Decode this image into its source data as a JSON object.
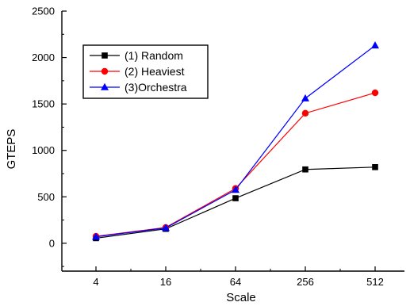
{
  "chart_data": {
    "type": "line",
    "title": "",
    "xlabel": "Scale",
    "ylabel": "GTEPS",
    "categories": [
      "4",
      "16",
      "64",
      "256",
      "512"
    ],
    "ylim": [
      -300,
      2500
    ],
    "yticks": [
      0,
      500,
      1000,
      1500,
      2000,
      2500
    ],
    "grid": false,
    "legend_position": "upper-left",
    "series": [
      {
        "name": "(1) Random",
        "color": "#000000",
        "marker": "square",
        "values": [
          55,
          155,
          485,
          795,
          820
        ]
      },
      {
        "name": "(2) Heaviest",
        "color": "#ff0000",
        "marker": "circle",
        "values": [
          75,
          170,
          590,
          1400,
          1620
        ]
      },
      {
        "name": "(3)Orchestra",
        "color": "#0000ff",
        "marker": "triangle",
        "values": [
          70,
          165,
          575,
          1560,
          2130
        ]
      }
    ]
  }
}
